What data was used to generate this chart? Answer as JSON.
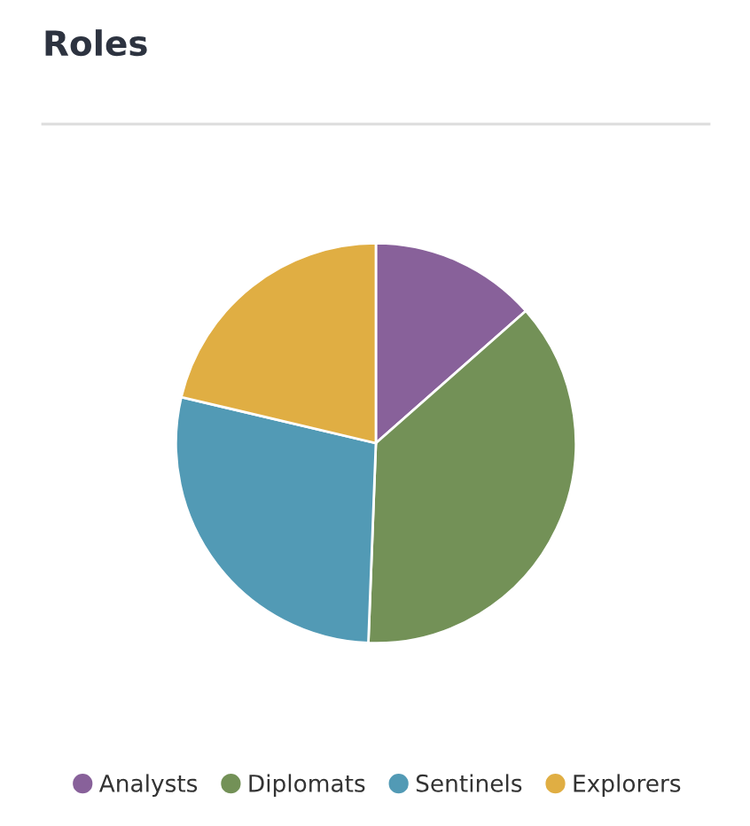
{
  "chart_data": {
    "type": "pie",
    "title": "Roles",
    "categories": [
      "Analysts",
      "Diplomats",
      "Sentinels",
      "Explorers"
    ],
    "values": [
      13.5,
      37.1,
      28.1,
      21.3
    ],
    "colors": [
      "#88619a",
      "#739157",
      "#529ab5",
      "#e0ae43"
    ],
    "legend": "bottom"
  }
}
